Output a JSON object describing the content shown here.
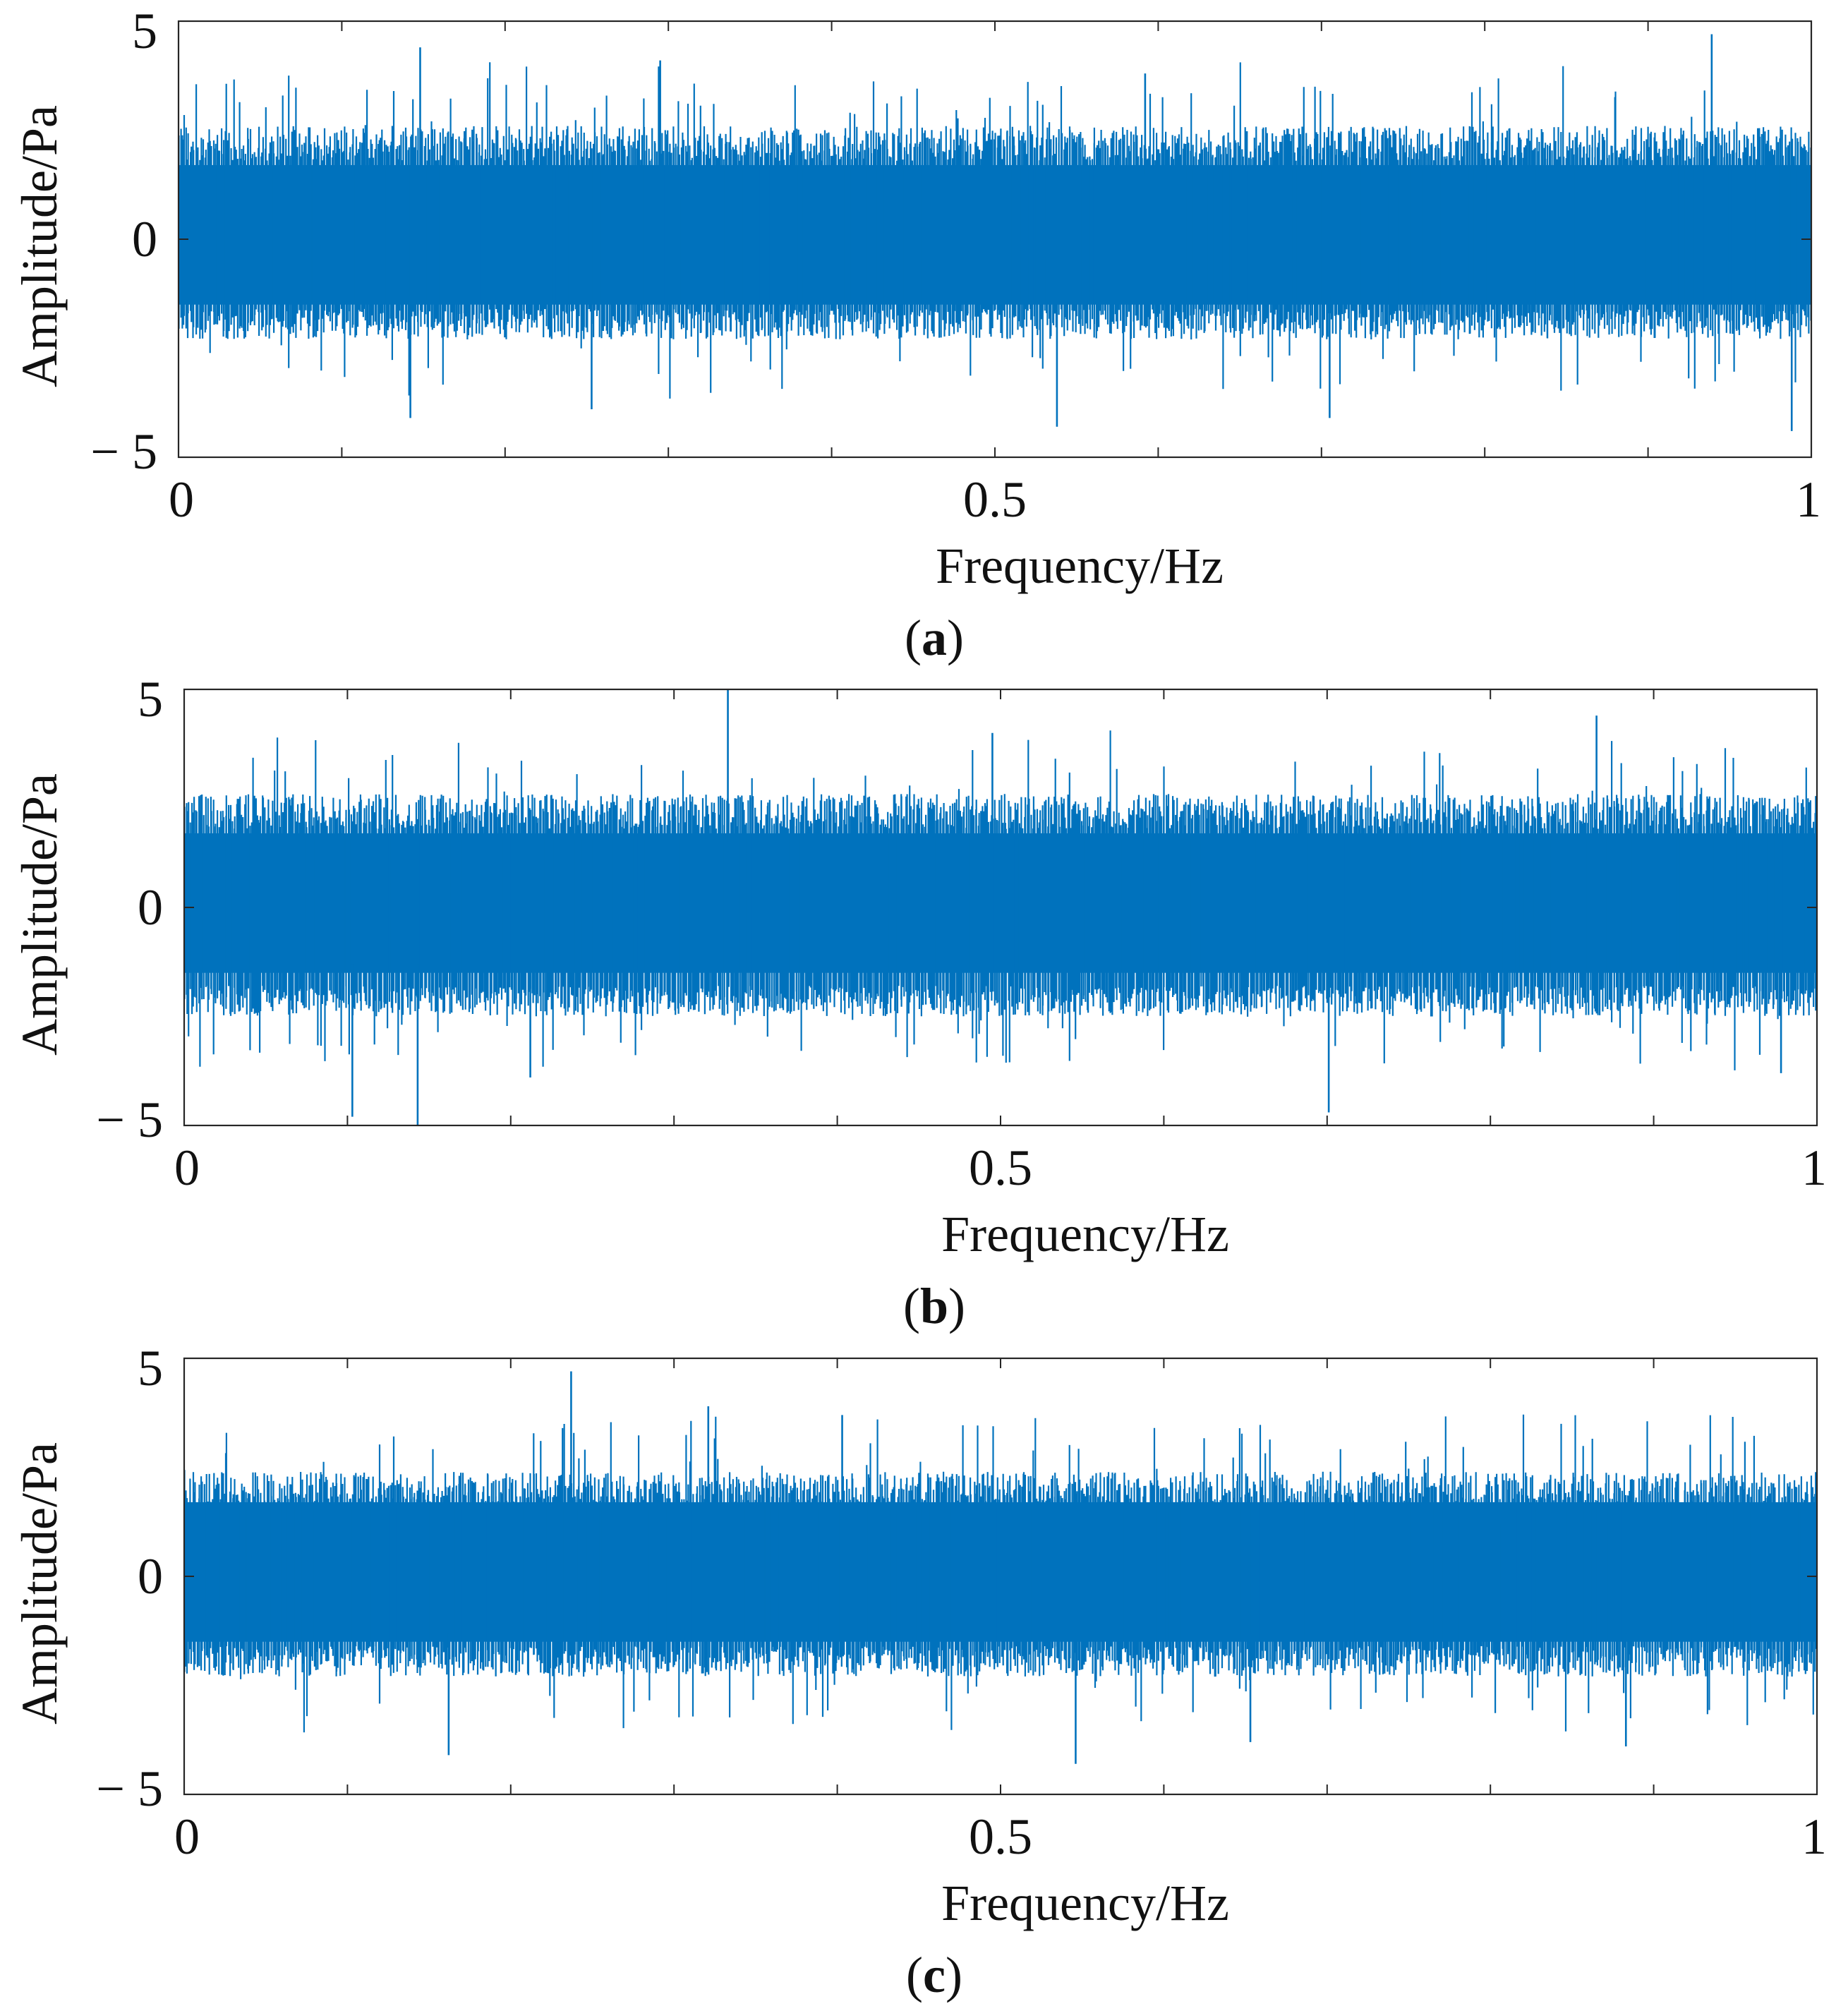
{
  "chart_data": [
    {
      "type": "line",
      "panel_label": "a",
      "title": "",
      "xlabel": "Frequency/Hz",
      "ylabel": "Amplitude/Pa",
      "xlim": [
        0,
        1
      ],
      "ylim": [
        -5,
        5
      ],
      "xticks": [
        0,
        0.5,
        1
      ],
      "xtick_labels": [
        "0",
        "0.5",
        "1"
      ],
      "yticks": [
        -5,
        0,
        5
      ],
      "ytick_labels": [
        "− 5",
        "0",
        "5"
      ],
      "minor_xticks": [
        0.1,
        0.2,
        0.3,
        0.4,
        0.6,
        0.7,
        0.8,
        0.9
      ],
      "grid": false,
      "color": "#0072BD",
      "signal": {
        "kind": "random-noise",
        "n_points": 1200,
        "seed": 11,
        "band_min": -2.3,
        "band_max": 2.6,
        "outlier_rate": 0.05,
        "peaks": [
          {
            "x": 0.148,
            "y": 4.4
          },
          {
            "x": 0.295,
            "y": 4.1
          },
          {
            "x": 0.592,
            "y": 3.8
          },
          {
            "x": 0.939,
            "y": 4.7
          },
          {
            "x": 0.142,
            "y": -4.1
          },
          {
            "x": 0.538,
            "y": -4.3
          },
          {
            "x": 0.705,
            "y": -4.1
          },
          {
            "x": 0.988,
            "y": -4.4
          },
          {
            "x": 0.253,
            "y": -3.9
          }
        ]
      }
    },
    {
      "type": "line",
      "panel_label": "b",
      "title": "",
      "xlabel": "Frequency/Hz",
      "ylabel": "Amplitude/Pa",
      "xlim": [
        0,
        1
      ],
      "ylim": [
        -5,
        5
      ],
      "xticks": [
        0,
        0.5,
        1
      ],
      "xtick_labels": [
        "0",
        "0.5",
        "1"
      ],
      "yticks": [
        -5,
        0,
        5
      ],
      "ytick_labels": [
        "− 5",
        "0",
        "5"
      ],
      "minor_xticks": [
        0.1,
        0.2,
        0.3,
        0.4,
        0.6,
        0.7,
        0.8,
        0.9
      ],
      "grid": false,
      "color": "#0072BD",
      "signal": {
        "kind": "random-noise",
        "n_points": 1200,
        "seed": 23,
        "band_min": -2.5,
        "band_max": 2.6,
        "outlier_rate": 0.05,
        "peaks": [
          {
            "x": 0.333,
            "y": 5.0
          },
          {
            "x": 0.865,
            "y": 4.4
          },
          {
            "x": 0.495,
            "y": 4.0
          },
          {
            "x": 0.103,
            "y": -4.8
          },
          {
            "x": 0.143,
            "y": -5.0
          },
          {
            "x": 0.701,
            "y": -4.7
          },
          {
            "x": 0.212,
            "y": -3.9
          },
          {
            "x": 0.978,
            "y": -3.8
          }
        ]
      }
    },
    {
      "type": "line",
      "panel_label": "c",
      "title": "",
      "xlabel": "Frequency/Hz",
      "ylabel": "Amplitude/Pa",
      "xlim": [
        0,
        1
      ],
      "ylim": [
        -5,
        5
      ],
      "xticks": [
        0,
        0.5,
        1
      ],
      "xtick_labels": [
        "0",
        "0.5",
        "1"
      ],
      "yticks": [
        -5,
        0,
        5
      ],
      "ytick_labels": [
        "− 5",
        "0",
        "5"
      ],
      "minor_xticks": [
        0.1,
        0.2,
        0.3,
        0.4,
        0.6,
        0.7,
        0.8,
        0.9
      ],
      "grid": false,
      "color": "#0072BD",
      "signal": {
        "kind": "random-noise",
        "n_points": 1200,
        "seed": 37,
        "band_min": -2.3,
        "band_max": 2.4,
        "outlier_rate": 0.05,
        "peaks": [
          {
            "x": 0.237,
            "y": 4.7
          },
          {
            "x": 0.321,
            "y": 3.9
          },
          {
            "x": 0.403,
            "y": 3.7
          },
          {
            "x": 0.546,
            "y": -4.3
          },
          {
            "x": 0.162,
            "y": -4.1
          },
          {
            "x": 0.883,
            "y": -3.9
          },
          {
            "x": 0.653,
            "y": -3.8
          }
        ]
      }
    }
  ]
}
